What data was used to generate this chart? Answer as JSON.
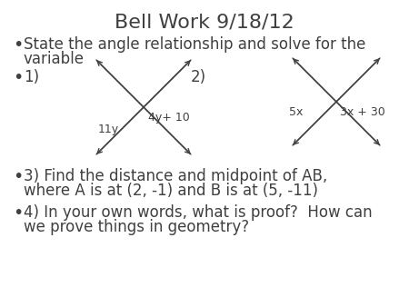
{
  "title": "Bell Work 9/18/12",
  "title_fontsize": 16,
  "background_color": "#ffffff",
  "text_color": "#404040",
  "bullet1_line1": "State the angle relationship and solve for the",
  "bullet1_line2": "variable",
  "bullet2_1": "1)",
  "bullet2_2": "2)",
  "bullet3_line1": "3) Find the distance and midpoint of AB,",
  "bullet3_line2": "where A is at (2, -1) and B is at (5, -11)",
  "bullet4_line1": "4) In your own words, what is proof?  How can",
  "bullet4_line2": "we prove things in geometry?",
  "label_4y10": "4y+ 10",
  "label_11y": "11y",
  "label_5x": "5x",
  "label_3x30": "3x + 30",
  "font_size_body": 12,
  "font_size_labels": 9
}
